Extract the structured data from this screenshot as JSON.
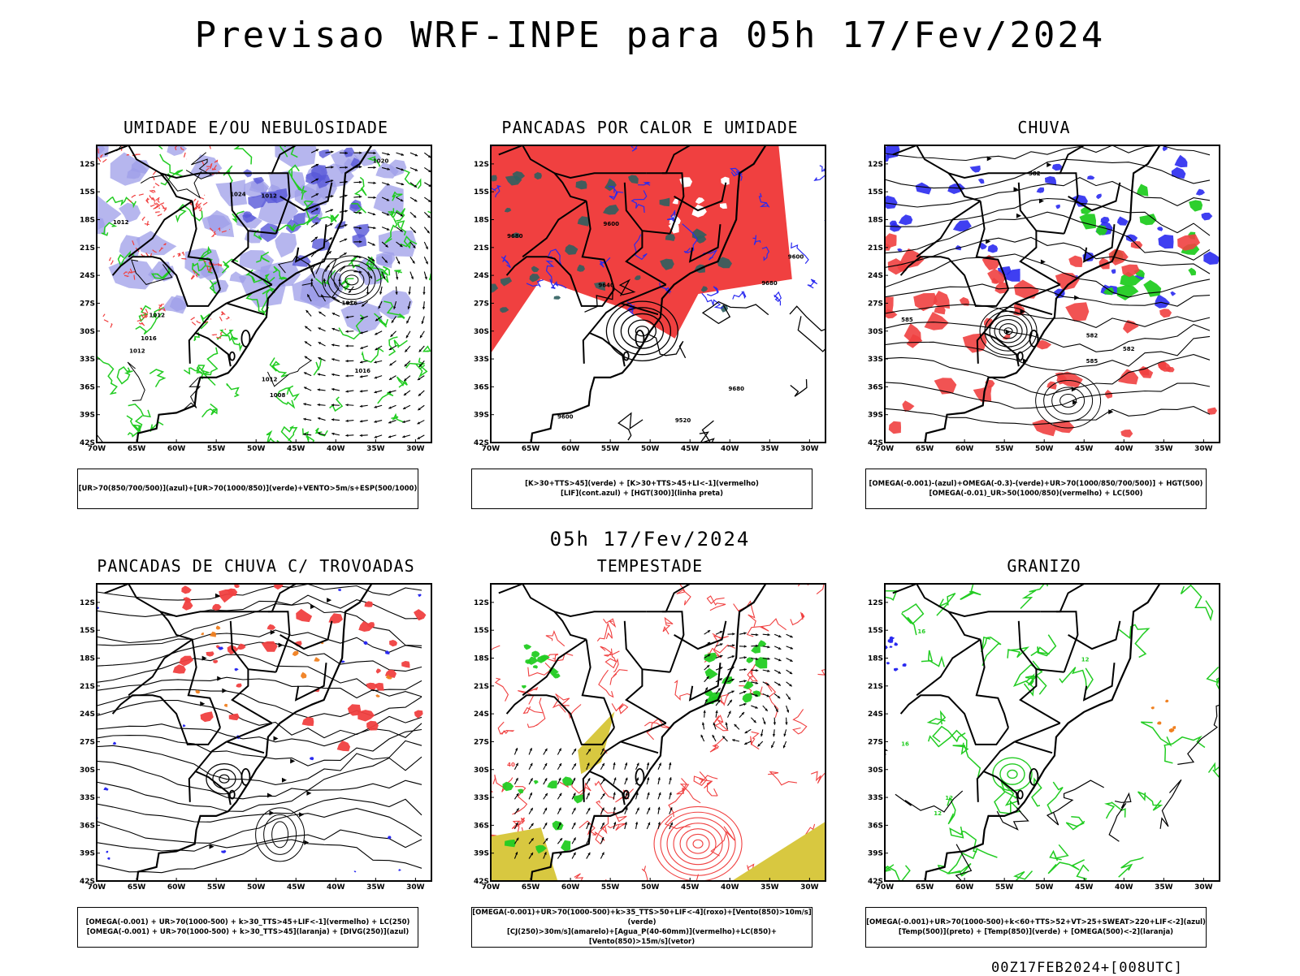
{
  "header": {
    "title": "Previsao WRF-INPE  para 05h 17/Fev/2024"
  },
  "middle_title": "05h 17/Fev/2024",
  "footer": "00Z17FEB2024+[008UTC]",
  "axes": {
    "lat_labels": [
      "12S",
      "15S",
      "18S",
      "21S",
      "24S",
      "27S",
      "30S",
      "33S",
      "36S",
      "39S",
      "42S"
    ],
    "lon_labels": [
      "70W",
      "65W",
      "60W",
      "55W",
      "50W",
      "45W",
      "40W",
      "35W",
      "30W"
    ]
  },
  "colors": {
    "blue_fill": "#9d9de8",
    "blue": "#2a2af0",
    "green": "#22cc22",
    "red": "#f04040",
    "dark_teal": "#2f5f5f",
    "yellow": "#d8c840",
    "orange": "#f08020"
  },
  "panels": [
    {
      "id": "umidade",
      "title": "UMIDADE E/OU NEBULOSIDADE",
      "legend": [
        "[UR>70(850/700/500)](azul)+[UR>70(1000/850)](verde)+VENTO>5m/s+ESP(500/1000)"
      ],
      "contour_labels": [
        "1012",
        "1016",
        "1012",
        "1016",
        "1008",
        "1012",
        "1012",
        "1020",
        "1024",
        "1012",
        "1016"
      ]
    },
    {
      "id": "pancadas-calor",
      "title": "PANCADAS POR CALOR E UMIDADE",
      "legend": [
        "[K>30+TTS>45](verde) + [K>30+TTS>45+LI<-1](vermelho)",
        "[LIF](cont.azul) + [HGT(300)](linha preta)"
      ],
      "contour_labels": [
        "9680",
        "9680",
        "9640",
        "9600",
        "9600",
        "9520",
        "9680",
        "9600"
      ]
    },
    {
      "id": "chuva",
      "title": "CHUVA",
      "legend": [
        "[OMEGA(-0.001)-(azul)+OMEGA(-0.3)-(verde)+UR>70(1000/850/700/500)] + HGT(500)",
        "[OMEGA(-0.01)_UR>50(1000/850)(vermelho) + LC(500)"
      ],
      "contour_labels": [
        "585",
        "582",
        "582",
        "585",
        "582"
      ]
    },
    {
      "id": "trovoadas",
      "title": "PANCADAS DE CHUVA C/ TROVOADAS",
      "legend": [
        "[OMEGA(-0.001) + UR>70(1000-500) + k>30_TTS>45+LIF<-1](vermelho) + LC(250)",
        "[OMEGA(-0.001) + UR>70(1000-500) + k>30_TTS>45](laranja) + [DIVG(250)](azul)"
      ],
      "contour_labels": []
    },
    {
      "id": "tempestade",
      "title": "TEMPESTADE",
      "legend": [
        "[OMEGA(-0.001)+UR>70(1000-500)+k>35_TTS>50+LIF<-4](roxo)+[Vento(850)>10m/s](verde)",
        "[CJ(250)>30m/s](amarelo)+[Agua_P(40-60mm)](vermelho)+LC(850)+[Vento(850)>15m/s](vetor)"
      ],
      "contour_labels": [
        "40"
      ]
    },
    {
      "id": "granizo",
      "title": "GRANIZO",
      "legend": [
        "[OMEGA(-0.001)+UR>70(1000-500)+k<60+TTS>52+VT>25+SWEAT>220+LIF<-2](azul)",
        "[Temp(500)](preto) + [Temp(850)](verde) + [OMEGA(500)<-2](laranja)"
      ],
      "contour_labels": [
        "16",
        "12",
        "12",
        "16",
        "12"
      ]
    }
  ]
}
